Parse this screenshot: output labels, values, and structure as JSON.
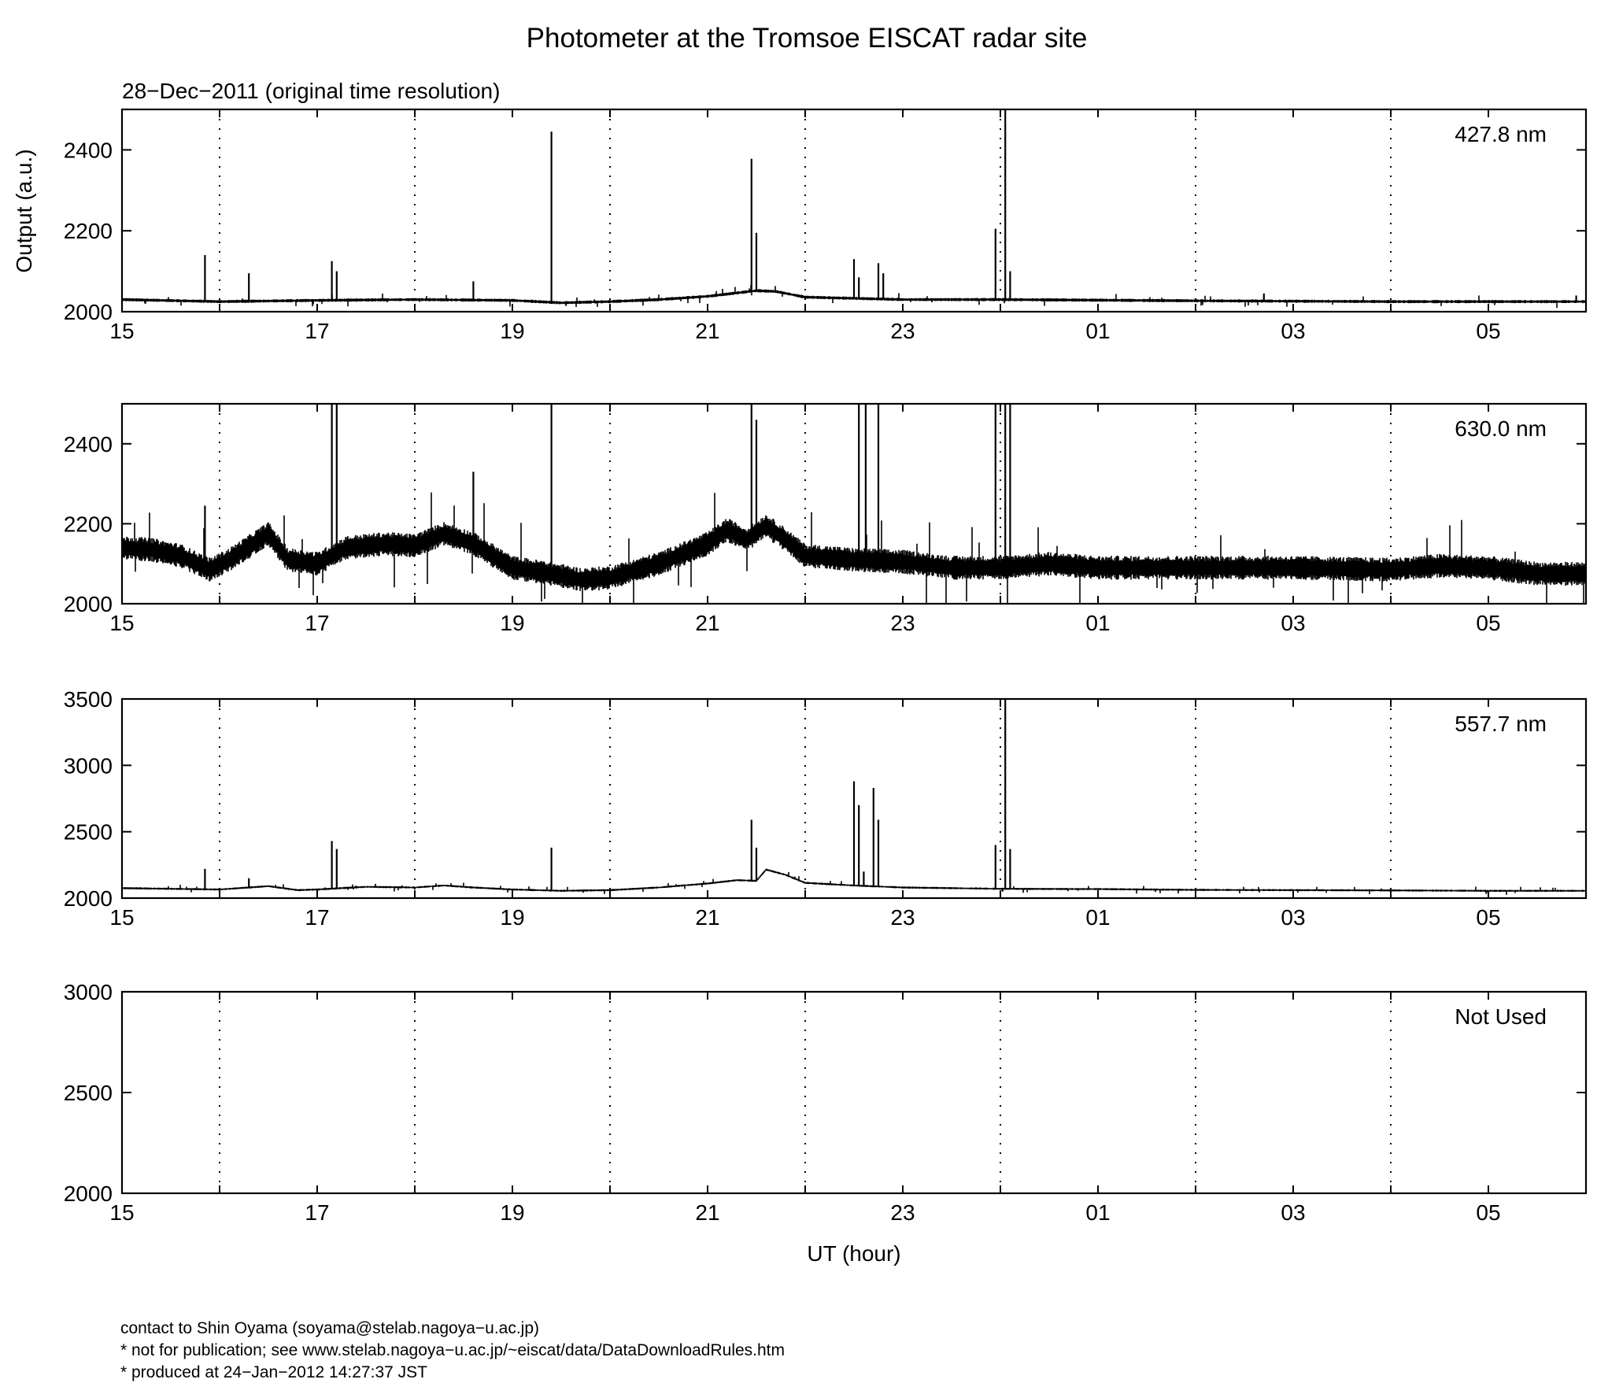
{
  "title": "Photometer at the Tromsoe EISCAT radar site",
  "subtitle": "28−Dec−2011 (original time resolution)",
  "ylabel": "Output (a.u.)",
  "xlabel": "UT (hour)",
  "footer": {
    "contact": "contact to Shin Oyama (soyama@stelab.nagoya−u.ac.jp)",
    "notice": "* not for publication; see www.stelab.nagoya−u.ac.jp/~eiscat/data/DataDownloadRules.htm",
    "produced": "* produced at 24−Jan−2012 14:27:37 JST"
  },
  "chart_data": [
    {
      "type": "line",
      "panel_label": "427.8 nm",
      "x_unit": "UT hours (24 = 00 next day)",
      "xlim": [
        15,
        30
      ],
      "ylim": [
        2000,
        2500
      ],
      "yticks": [
        2000,
        2200,
        2400
      ],
      "xticks": [
        "15",
        "17",
        "19",
        "21",
        "23",
        "01",
        "03",
        "05"
      ],
      "grid": "vertical dotted at every hour",
      "noise_amplitude": 4,
      "baseline": [
        [
          15,
          2030
        ],
        [
          16,
          2025
        ],
        [
          17,
          2028
        ],
        [
          18,
          2030
        ],
        [
          19,
          2028
        ],
        [
          19.5,
          2022
        ],
        [
          20,
          2025
        ],
        [
          20.5,
          2030
        ],
        [
          21,
          2038
        ],
        [
          21.5,
          2052
        ],
        [
          21.7,
          2050
        ],
        [
          22,
          2036
        ],
        [
          23,
          2030
        ],
        [
          24,
          2030
        ],
        [
          26,
          2027
        ],
        [
          28,
          2025
        ],
        [
          30,
          2025
        ]
      ],
      "spikes": [
        [
          15.85,
          2140
        ],
        [
          16.3,
          2095
        ],
        [
          17.15,
          2125
        ],
        [
          17.2,
          2100
        ],
        [
          18.6,
          2075
        ],
        [
          19.4,
          2445
        ],
        [
          21.45,
          2378
        ],
        [
          21.5,
          2195
        ],
        [
          22.5,
          2130
        ],
        [
          22.55,
          2085
        ],
        [
          22.75,
          2120
        ],
        [
          22.8,
          2095
        ],
        [
          23.95,
          2205
        ],
        [
          24.05,
          2500
        ],
        [
          24.1,
          2100
        ],
        [
          26.7,
          2045
        ],
        [
          29.9,
          2040
        ]
      ]
    },
    {
      "type": "line",
      "panel_label": "630.0 nm",
      "x_unit": "UT hours (24 = 00 next day)",
      "xlim": [
        15,
        30
      ],
      "ylim": [
        2000,
        2500
      ],
      "yticks": [
        2000,
        2200,
        2400
      ],
      "xticks": [
        "15",
        "17",
        "19",
        "21",
        "23",
        "01",
        "03",
        "05"
      ],
      "grid": "vertical dotted at every hour",
      "noise_amplitude": 30,
      "baseline": [
        [
          15,
          2140
        ],
        [
          15.3,
          2135
        ],
        [
          15.6,
          2120
        ],
        [
          15.9,
          2085
        ],
        [
          16.1,
          2110
        ],
        [
          16.5,
          2175
        ],
        [
          16.7,
          2110
        ],
        [
          17,
          2100
        ],
        [
          17.3,
          2140
        ],
        [
          17.7,
          2150
        ],
        [
          18,
          2145
        ],
        [
          18.3,
          2175
        ],
        [
          18.6,
          2150
        ],
        [
          19,
          2090
        ],
        [
          19.4,
          2075
        ],
        [
          19.7,
          2060
        ],
        [
          20,
          2065
        ],
        [
          20.5,
          2100
        ],
        [
          21,
          2150
        ],
        [
          21.2,
          2185
        ],
        [
          21.4,
          2160
        ],
        [
          21.6,
          2195
        ],
        [
          21.8,
          2160
        ],
        [
          22,
          2120
        ],
        [
          22.5,
          2110
        ],
        [
          23,
          2105
        ],
        [
          23.5,
          2090
        ],
        [
          24,
          2090
        ],
        [
          24.5,
          2100
        ],
        [
          25,
          2090
        ],
        [
          26,
          2090
        ],
        [
          27,
          2090
        ],
        [
          28,
          2085
        ],
        [
          28.5,
          2095
        ],
        [
          29,
          2090
        ],
        [
          29.5,
          2075
        ],
        [
          30,
          2075
        ]
      ],
      "spikes": [
        [
          15.85,
          2245
        ],
        [
          17.15,
          2500
        ],
        [
          17.2,
          2500
        ],
        [
          18.6,
          2330
        ],
        [
          19.4,
          2500
        ],
        [
          21.45,
          2500
        ],
        [
          21.5,
          2460
        ],
        [
          22.55,
          2500
        ],
        [
          22.62,
          2500
        ],
        [
          22.75,
          2500
        ],
        [
          23.95,
          2500
        ],
        [
          24.05,
          2500
        ],
        [
          24.1,
          2500
        ]
      ]
    },
    {
      "type": "line",
      "panel_label": "557.7 nm",
      "x_unit": "UT hours (24 = 00 next day)",
      "xlim": [
        15,
        30
      ],
      "ylim": [
        2000,
        3500
      ],
      "yticks": [
        2000,
        2500,
        3000,
        3500
      ],
      "xticks": [
        "15",
        "17",
        "19",
        "21",
        "23",
        "01",
        "03",
        "05"
      ],
      "grid": "vertical dotted at every hour",
      "noise_amplitude": 8,
      "baseline": [
        [
          15,
          2075
        ],
        [
          15.5,
          2070
        ],
        [
          16,
          2065
        ],
        [
          16.5,
          2090
        ],
        [
          16.8,
          2060
        ],
        [
          17,
          2065
        ],
        [
          17.5,
          2085
        ],
        [
          18,
          2080
        ],
        [
          18.3,
          2095
        ],
        [
          18.6,
          2080
        ],
        [
          19,
          2065
        ],
        [
          19.5,
          2055
        ],
        [
          20,
          2060
        ],
        [
          20.5,
          2080
        ],
        [
          21,
          2110
        ],
        [
          21.3,
          2135
        ],
        [
          21.5,
          2130
        ],
        [
          21.6,
          2215
        ],
        [
          21.8,
          2175
        ],
        [
          22,
          2115
        ],
        [
          22.5,
          2095
        ],
        [
          23,
          2080
        ],
        [
          24,
          2070
        ],
        [
          25,
          2068
        ],
        [
          26,
          2062
        ],
        [
          27,
          2060
        ],
        [
          28,
          2058
        ],
        [
          29,
          2055
        ],
        [
          30,
          2055
        ]
      ],
      "spikes": [
        [
          15.85,
          2220
        ],
        [
          16.3,
          2150
        ],
        [
          17.15,
          2430
        ],
        [
          17.2,
          2370
        ],
        [
          19.4,
          2380
        ],
        [
          21.45,
          2590
        ],
        [
          21.5,
          2380
        ],
        [
          22.5,
          2880
        ],
        [
          22.55,
          2700
        ],
        [
          22.6,
          2200
        ],
        [
          22.7,
          2830
        ],
        [
          22.75,
          2590
        ],
        [
          23.95,
          2400
        ],
        [
          24.05,
          3500
        ],
        [
          24.1,
          2370
        ]
      ]
    },
    {
      "type": "line",
      "panel_label": "Not Used",
      "xlim": [
        15,
        30
      ],
      "ylim": [
        2000,
        3000
      ],
      "yticks": [
        2000,
        2500,
        3000
      ],
      "xticks": [
        "15",
        "17",
        "19",
        "21",
        "23",
        "01",
        "03",
        "05"
      ],
      "grid": "vertical dotted at every hour",
      "baseline": [],
      "spikes": []
    }
  ]
}
